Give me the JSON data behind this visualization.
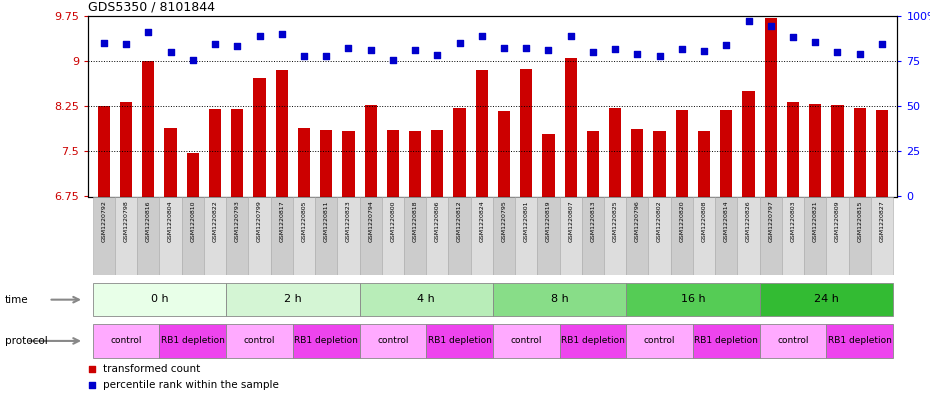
{
  "title": "GDS5350 / 8101844",
  "samples": [
    "GSM1220792",
    "GSM1220798",
    "GSM1220816",
    "GSM1220804",
    "GSM1220810",
    "GSM1220822",
    "GSM1220793",
    "GSM1220799",
    "GSM1220817",
    "GSM1220805",
    "GSM1220811",
    "GSM1220823",
    "GSM1220794",
    "GSM1220800",
    "GSM1220818",
    "GSM1220806",
    "GSM1220812",
    "GSM1220824",
    "GSM1220795",
    "GSM1220801",
    "GSM1220819",
    "GSM1220807",
    "GSM1220813",
    "GSM1220825",
    "GSM1220796",
    "GSM1220802",
    "GSM1220820",
    "GSM1220808",
    "GSM1220814",
    "GSM1220826",
    "GSM1220797",
    "GSM1220803",
    "GSM1220821",
    "GSM1220809",
    "GSM1220815",
    "GSM1220827"
  ],
  "bar_values": [
    8.25,
    8.32,
    9.0,
    7.88,
    7.47,
    8.2,
    8.2,
    8.72,
    8.85,
    7.88,
    7.86,
    7.84,
    8.27,
    7.86,
    7.84,
    7.85,
    8.22,
    8.85,
    8.17,
    8.87,
    7.78,
    9.05,
    7.84,
    8.22,
    7.87,
    7.84,
    8.18,
    7.83,
    8.18,
    8.5,
    9.72,
    8.32,
    8.28,
    8.27,
    8.22,
    8.18
  ],
  "percentile_values": [
    9.3,
    9.28,
    9.48,
    9.14,
    9.02,
    9.28,
    9.24,
    9.42,
    9.44,
    9.08,
    9.08,
    9.22,
    9.18,
    9.02,
    9.18,
    9.1,
    9.3,
    9.42,
    9.22,
    9.22,
    9.18,
    9.42,
    9.15,
    9.2,
    9.12,
    9.08,
    9.2,
    9.16,
    9.26,
    9.66,
    9.58,
    9.4,
    9.32,
    9.14,
    9.12,
    9.28
  ],
  "bar_color": "#cc0000",
  "marker_color": "#0000cc",
  "ylim": [
    6.75,
    9.75
  ],
  "yticks": [
    6.75,
    7.5,
    8.25,
    9.0,
    9.75
  ],
  "ytick_labels": [
    "6.75",
    "7.5",
    "8.25",
    "9",
    "9.75"
  ],
  "right_yticks": [
    0,
    25,
    50,
    75,
    100
  ],
  "right_ytick_labels": [
    "0",
    "25",
    "50",
    "75",
    "100%"
  ],
  "hlines": [
    7.5,
    8.25,
    9.0
  ],
  "time_labels": [
    "0 h",
    "2 h",
    "4 h",
    "8 h",
    "16 h",
    "24 h"
  ],
  "time_colors": [
    "#e8ffe8",
    "#d4f5d4",
    "#b8edb8",
    "#88dd88",
    "#55cc55",
    "#33bb33"
  ],
  "time_border": "#888888",
  "protocol_control_color": "#ffaaff",
  "protocol_rb1_color": "#ee44ee",
  "bar_color_bg": "#ffffff",
  "xlabel_color": "#cc0000",
  "legend_items": [
    "transformed count",
    "percentile rank within the sample"
  ],
  "left_label_color": "#888888",
  "sample_bg_color": "#cccccc",
  "sample_alt_color": "#dddddd"
}
